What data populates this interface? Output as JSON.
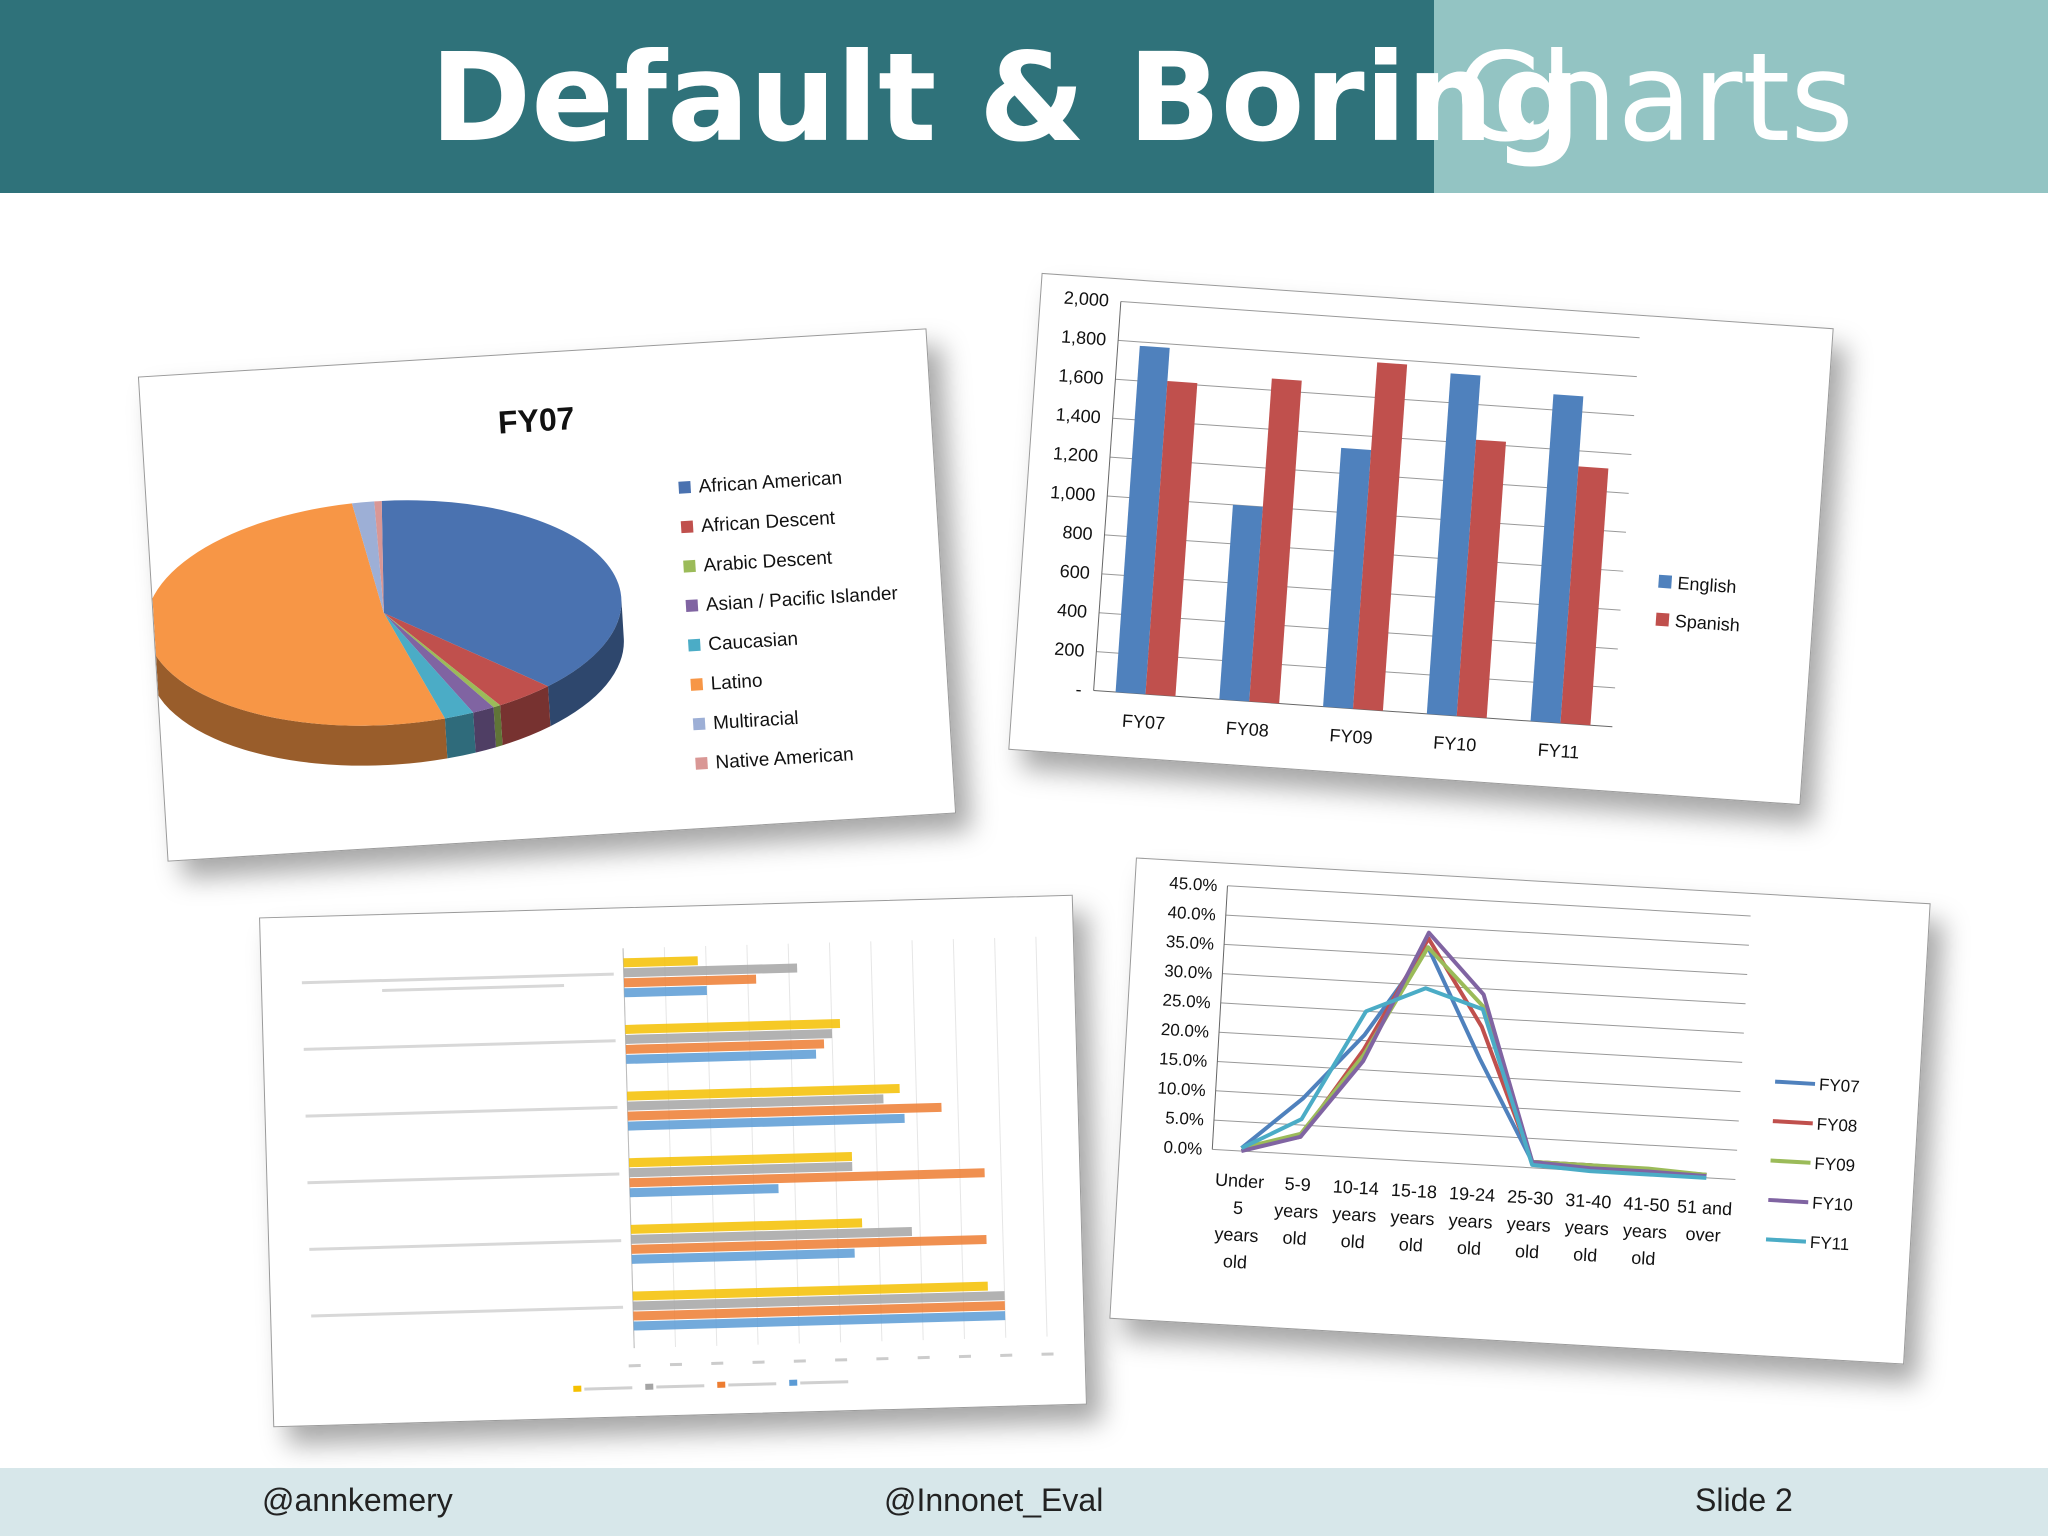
{
  "slide": {
    "title_main": "Default & Boring",
    "title_accent": "Charts",
    "footer_left": "@annkemery",
    "footer_center": "@Innonet_Eval",
    "footer_right": "Slide 2"
  },
  "colors": {
    "header_dark": "#2f727a",
    "header_light": "#93c4c3",
    "footer_bg": "#d7e7ea"
  },
  "chart_data": [
    {
      "type": "pie",
      "title": "FY07",
      "legend_position": "right",
      "categories": [
        "African American",
        "African Descent",
        "Arabic Descent",
        "Asian / Pacific Islander",
        "Caucasian",
        "Latino",
        "Multiracial",
        "Native American"
      ],
      "values": [
        38,
        4,
        0.5,
        1.5,
        2,
        52,
        1.5,
        0.5
      ],
      "colors": [
        "#4a72b0",
        "#c0504d",
        "#9bbb59",
        "#8064a2",
        "#4bacc6",
        "#f79646",
        "#9dafd6",
        "#d99795"
      ]
    },
    {
      "type": "bar",
      "categories": [
        "FY07",
        "FY08",
        "FY09",
        "FY10",
        "FY11"
      ],
      "series": [
        {
          "name": "English",
          "values": [
            1780,
            1000,
            1330,
            1750,
            1680
          ],
          "color": "#4f81bd"
        },
        {
          "name": "Spanish",
          "values": [
            1610,
            1660,
            1780,
            1420,
            1320
          ],
          "color": "#c0504d"
        }
      ],
      "ylim": [
        0,
        2000
      ],
      "yticks": [
        "-",
        "200",
        "400",
        "600",
        "800",
        "1,000",
        "1,200",
        "1,400",
        "1,600",
        "1,800",
        "2,000"
      ],
      "grid": true,
      "legend_position": "right"
    },
    {
      "type": "bar",
      "orientation": "horizontal",
      "categories": [
        "",
        "",
        "",
        "",
        "",
        ""
      ],
      "series": [
        {
          "name": "",
          "values": [
            0.18,
            0.52,
            0.66,
            0.54,
            0.56,
            0.86
          ],
          "color": "#f5c000"
        },
        {
          "name": "",
          "values": [
            0.42,
            0.5,
            0.62,
            0.54,
            0.68,
            0.9
          ],
          "color": "#a5a5a5"
        },
        {
          "name": "",
          "values": [
            0.32,
            0.48,
            0.76,
            0.86,
            0.86,
            0.9
          ],
          "color": "#ed7d31"
        },
        {
          "name": "",
          "values": [
            0.2,
            0.46,
            0.67,
            0.36,
            0.54,
            0.9
          ],
          "color": "#5b9bd5"
        }
      ],
      "xlim": [
        0,
        1
      ],
      "grid": true,
      "legend_position": "bottom"
    },
    {
      "type": "line",
      "categories": [
        "Under 5 years old",
        "5-9 years old",
        "10-14 years old",
        "15-18 years old",
        "19-24 years old",
        "25-30 years old",
        "31-40 years old",
        "41-50 years old",
        "51 and over"
      ],
      "series": [
        {
          "name": "FY07",
          "values": [
            0.5,
            9.5,
            21.0,
            36.5,
            18.0,
            1.0,
            1.0,
            0.8,
            0.5
          ],
          "color": "#4f81bd"
        },
        {
          "name": "FY08",
          "values": [
            0.5,
            3.0,
            18.5,
            38.0,
            23.5,
            1.0,
            1.0,
            0.5,
            0.5
          ],
          "color": "#c0504d"
        },
        {
          "name": "FY09",
          "values": [
            0.5,
            3.5,
            17.5,
            36.5,
            27.0,
            1.0,
            1.0,
            1.0,
            0.5
          ],
          "color": "#9bbb59"
        },
        {
          "name": "FY10",
          "values": [
            0.0,
            3.0,
            16.5,
            39.0,
            29.0,
            1.0,
            0.5,
            0.5,
            0.3
          ],
          "color": "#8064a2"
        },
        {
          "name": "FY11",
          "values": [
            0.5,
            6.0,
            25.0,
            29.5,
            26.5,
            0.5,
            0.0,
            0.0,
            0.0
          ],
          "color": "#4bacc6"
        }
      ],
      "ylim": [
        0,
        45
      ],
      "yticks": [
        "0.0%",
        "5.0%",
        "10.0%",
        "15.0%",
        "20.0%",
        "25.0%",
        "30.0%",
        "35.0%",
        "40.0%",
        "45.0%"
      ],
      "grid": true,
      "legend_position": "right"
    }
  ]
}
